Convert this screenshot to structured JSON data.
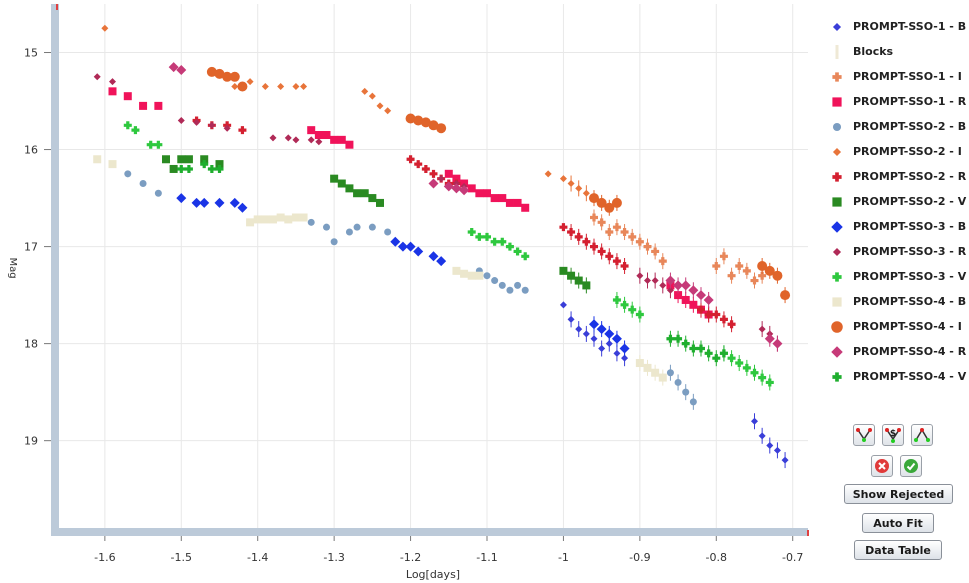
{
  "chart_data": {
    "type": "scatter",
    "title": "",
    "xlabel": "Log[days]",
    "ylabel": "Mag",
    "xlim": [
      -1.66,
      -0.68
    ],
    "ylim": [
      19.9,
      14.5
    ],
    "y_inverted": true,
    "grid": true,
    "legend_position": "right",
    "x_ticks": [
      -1.6,
      -1.5,
      -1.4,
      -1.3,
      -1.2,
      -1.1,
      -1.0,
      -0.9,
      -0.8,
      -0.7
    ],
    "x_tick_labels": [
      "-1.6",
      "-1.5",
      "-1.4",
      "-1.3",
      "-1.2",
      "-1.1",
      "-1",
      "-0.9",
      "-0.8",
      "-0.7"
    ],
    "y_ticks": [
      15,
      16,
      17,
      18,
      19
    ],
    "y_tick_labels": [
      "15",
      "16",
      "17",
      "18",
      "19"
    ],
    "series": [
      {
        "name": "PROMPT-SSO-1 - B",
        "color": "#3a3ed8",
        "marker": "diamond-small",
        "x": [
          -1.0,
          -0.99,
          -0.98,
          -0.97,
          -0.96,
          -0.95,
          -0.94,
          -0.93,
          -0.92,
          -0.75,
          -0.74,
          -0.73,
          -0.72,
          -0.71
        ],
        "y": [
          17.6,
          17.75,
          17.85,
          17.9,
          17.95,
          18.05,
          18.0,
          18.1,
          18.15,
          18.8,
          18.95,
          19.05,
          19.1,
          19.2
        ]
      },
      {
        "name": "Blocks",
        "color": "#efe9d6",
        "marker": "bar",
        "x": [],
        "y": []
      },
      {
        "name": "PROMPT-SSO-1 - I",
        "color": "#e8875a",
        "marker": "cross",
        "x": [
          -0.96,
          -0.95,
          -0.94,
          -0.93,
          -0.92,
          -0.91,
          -0.9,
          -0.89,
          -0.88,
          -0.87,
          -0.8,
          -0.79,
          -0.78,
          -0.77,
          -0.76,
          -0.75,
          -0.74
        ],
        "y": [
          16.7,
          16.75,
          16.85,
          16.8,
          16.85,
          16.9,
          16.95,
          17.0,
          17.05,
          17.15,
          17.2,
          17.1,
          17.3,
          17.2,
          17.25,
          17.35,
          17.3
        ]
      },
      {
        "name": "PROMPT-SSO-1 - R",
        "color": "#f0135a",
        "marker": "square",
        "x": [
          -1.59,
          -1.57,
          -1.55,
          -1.53,
          -1.33,
          -1.32,
          -1.31,
          -1.3,
          -1.29,
          -1.28,
          -1.15,
          -1.14,
          -1.13,
          -1.12,
          -1.11,
          -1.1,
          -1.09,
          -1.08,
          -1.07,
          -1.06,
          -1.05,
          -0.86,
          -0.85,
          -0.84,
          -0.83,
          -0.82,
          -0.81
        ],
        "y": [
          15.4,
          15.45,
          15.55,
          15.55,
          15.8,
          15.85,
          15.85,
          15.9,
          15.9,
          15.95,
          16.25,
          16.3,
          16.35,
          16.4,
          16.45,
          16.45,
          16.5,
          16.5,
          16.55,
          16.55,
          16.6,
          17.4,
          17.5,
          17.55,
          17.6,
          17.65,
          17.7
        ]
      },
      {
        "name": "PROMPT-SSO-2 - B",
        "color": "#7b9dc1",
        "marker": "circle",
        "x": [
          -1.57,
          -1.55,
          -1.53,
          -1.33,
          -1.31,
          -1.3,
          -1.28,
          -1.27,
          -1.25,
          -1.23,
          -1.11,
          -1.1,
          -1.09,
          -1.08,
          -1.07,
          -1.06,
          -1.05,
          -0.86,
          -0.85,
          -0.84,
          -0.83
        ],
        "y": [
          16.25,
          16.35,
          16.45,
          16.75,
          16.8,
          16.95,
          16.85,
          16.8,
          16.8,
          16.85,
          17.25,
          17.3,
          17.35,
          17.4,
          17.45,
          17.4,
          17.45,
          18.3,
          18.4,
          18.5,
          18.6
        ]
      },
      {
        "name": "PROMPT-SSO-2 - I",
        "color": "#e8743a",
        "marker": "diamond-small",
        "x": [
          -1.6,
          -1.43,
          -1.41,
          -1.39,
          -1.37,
          -1.35,
          -1.34,
          -1.26,
          -1.25,
          -1.24,
          -1.23,
          -1.02,
          -1.0,
          -0.99,
          -0.98,
          -0.97
        ],
        "y": [
          14.75,
          15.35,
          15.3,
          15.35,
          15.35,
          15.35,
          15.35,
          15.4,
          15.45,
          15.55,
          15.6,
          16.25,
          16.3,
          16.35,
          16.4,
          16.45
        ]
      },
      {
        "name": "PROMPT-SSO-2 - R",
        "color": "#d42030",
        "marker": "cross",
        "x": [
          -1.48,
          -1.46,
          -1.44,
          -1.42,
          -1.2,
          -1.19,
          -1.18,
          -1.17,
          -1.16,
          -1.15,
          -1.14,
          -1.0,
          -0.99,
          -0.98,
          -0.97,
          -0.96,
          -0.95,
          -0.94,
          -0.93,
          -0.92,
          -0.82,
          -0.81,
          -0.8,
          -0.79,
          -0.78
        ],
        "y": [
          15.7,
          15.75,
          15.75,
          15.8,
          16.1,
          16.15,
          16.2,
          16.25,
          16.3,
          16.35,
          16.35,
          16.8,
          16.85,
          16.9,
          16.95,
          17.0,
          17.05,
          17.1,
          17.15,
          17.2,
          17.65,
          17.7,
          17.7,
          17.75,
          17.8
        ]
      },
      {
        "name": "PROMPT-SSO-2 - V",
        "color": "#2a8a22",
        "marker": "square",
        "x": [
          -1.52,
          -1.51,
          -1.5,
          -1.49,
          -1.47,
          -1.45,
          -1.3,
          -1.29,
          -1.28,
          -1.27,
          -1.26,
          -1.25,
          -1.24,
          -1.0,
          -0.99,
          -0.98,
          -0.97
        ],
        "y": [
          16.1,
          16.2,
          16.1,
          16.1,
          16.1,
          16.15,
          16.3,
          16.35,
          16.4,
          16.45,
          16.45,
          16.5,
          16.55,
          17.25,
          17.3,
          17.35,
          17.4
        ]
      },
      {
        "name": "PROMPT-SSO-3 - B",
        "color": "#1a34e6",
        "marker": "diamond",
        "x": [
          -1.5,
          -1.48,
          -1.47,
          -1.45,
          -1.43,
          -1.42,
          -1.22,
          -1.21,
          -1.2,
          -1.19,
          -1.17,
          -1.16,
          -0.96,
          -0.95,
          -0.94,
          -0.93,
          -0.92
        ],
        "y": [
          16.5,
          16.55,
          16.55,
          16.55,
          16.55,
          16.6,
          16.95,
          17.0,
          17.0,
          17.05,
          17.1,
          17.15,
          17.8,
          17.85,
          17.9,
          17.95,
          18.05
        ]
      },
      {
        "name": "PROMPT-SSO-3 - R",
        "color": "#b02a57",
        "marker": "diamond-small",
        "x": [
          -1.61,
          -1.59,
          -1.5,
          -1.48,
          -1.46,
          -1.44,
          -1.38,
          -1.36,
          -1.35,
          -1.33,
          -1.32,
          -1.16,
          -1.14,
          -1.13,
          -0.9,
          -0.89,
          -0.88,
          -0.87,
          -0.86,
          -0.74,
          -0.73,
          -0.72
        ],
        "y": [
          15.25,
          15.3,
          15.7,
          15.72,
          15.75,
          15.78,
          15.88,
          15.88,
          15.9,
          15.9,
          15.92,
          16.3,
          16.35,
          16.38,
          17.3,
          17.35,
          17.35,
          17.4,
          17.45,
          17.85,
          17.9,
          18.0
        ]
      },
      {
        "name": "PROMPT-SSO-3 - V",
        "color": "#2ec83e",
        "marker": "cross",
        "x": [
          -1.57,
          -1.56,
          -1.54,
          -1.53,
          -1.12,
          -1.11,
          -1.1,
          -1.09,
          -1.08,
          -1.07,
          -1.06,
          -1.05,
          -0.93,
          -0.92,
          -0.91,
          -0.9,
          -0.79,
          -0.78,
          -0.77,
          -0.76,
          -0.75,
          -0.74,
          -0.73
        ],
        "y": [
          15.75,
          15.8,
          15.95,
          15.95,
          16.85,
          16.9,
          16.9,
          16.95,
          16.95,
          17.0,
          17.05,
          17.1,
          17.55,
          17.6,
          17.65,
          17.7,
          18.1,
          18.15,
          18.2,
          18.25,
          18.3,
          18.35,
          18.4
        ]
      },
      {
        "name": "PROMPT-SSO-4 - B",
        "color": "#ece7cd",
        "marker": "square",
        "x": [
          -1.61,
          -1.59,
          -1.41,
          -1.4,
          -1.39,
          -1.38,
          -1.37,
          -1.36,
          -1.35,
          -1.34,
          -1.14,
          -1.13,
          -1.12,
          -1.11,
          -0.9,
          -0.89,
          -0.88,
          -0.87
        ],
        "y": [
          16.1,
          16.15,
          16.75,
          16.72,
          16.72,
          16.72,
          16.7,
          16.72,
          16.7,
          16.7,
          17.25,
          17.28,
          17.3,
          17.3,
          18.2,
          18.25,
          18.3,
          18.35
        ]
      },
      {
        "name": "PROMPT-SSO-4 - I",
        "color": "#e0642a",
        "marker": "circle-large",
        "x": [
          -1.46,
          -1.45,
          -1.44,
          -1.43,
          -1.42,
          -1.2,
          -1.19,
          -1.18,
          -1.17,
          -1.16,
          -0.96,
          -0.95,
          -0.94,
          -0.93,
          -0.74,
          -0.73,
          -0.72,
          -0.71
        ],
        "y": [
          15.2,
          15.22,
          15.25,
          15.25,
          15.35,
          15.68,
          15.7,
          15.72,
          15.75,
          15.78,
          16.5,
          16.55,
          16.6,
          16.55,
          17.2,
          17.25,
          17.3,
          17.5
        ]
      },
      {
        "name": "PROMPT-SSO-4 - R",
        "color": "#c63a78",
        "marker": "diamond",
        "x": [
          -1.51,
          -1.5,
          -1.17,
          -1.15,
          -1.14,
          -1.13,
          -0.86,
          -0.85,
          -0.84,
          -0.83,
          -0.82,
          -0.81,
          -0.73,
          -0.72
        ],
        "y": [
          15.15,
          15.18,
          16.35,
          16.38,
          16.4,
          16.42,
          17.35,
          17.4,
          17.4,
          17.45,
          17.5,
          17.55,
          17.95,
          18.0
        ]
      },
      {
        "name": "PROMPT-SSO-4 - V",
        "color": "#1fae2e",
        "marker": "cross",
        "x": [
          -1.5,
          -1.49,
          -1.47,
          -1.46,
          -1.45,
          -0.86,
          -0.85,
          -0.84,
          -0.83,
          -0.82,
          -0.81,
          -0.8,
          -0.79
        ],
        "y": [
          16.2,
          16.2,
          16.15,
          16.2,
          16.2,
          17.95,
          17.95,
          18.0,
          18.05,
          18.05,
          18.1,
          18.15,
          18.1
        ]
      }
    ]
  },
  "controls": {
    "show_rejected": "Show Rejected",
    "auto_fit": "Auto Fit",
    "data_table": "Data Table",
    "tool_icons": [
      "fit-down-icon",
      "dollar-fit-icon",
      "fit-up-icon",
      "reject-icon",
      "accept-icon"
    ]
  }
}
